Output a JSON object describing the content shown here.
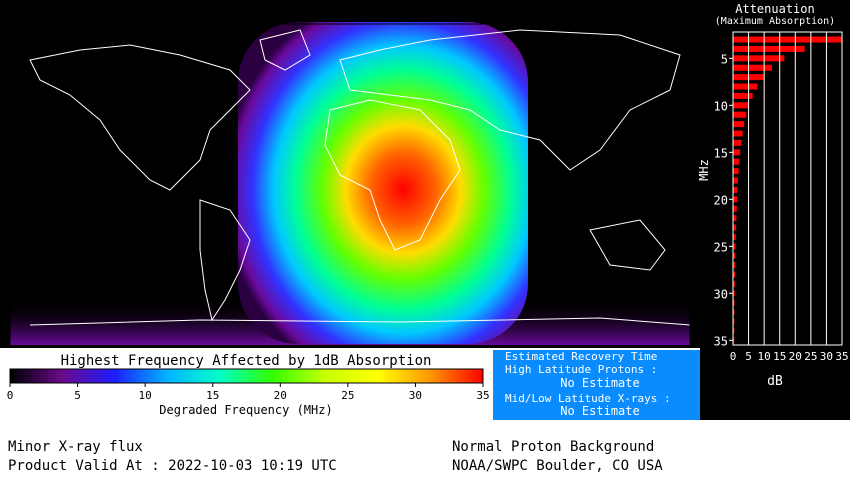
{
  "colorbar": {
    "title": "Highest Frequency Affected by 1dB Absorption",
    "xlabel": "Degraded Frequency (MHz)",
    "xlim": [
      0,
      35
    ],
    "xticks": [
      0,
      5,
      10,
      15,
      20,
      25,
      30,
      35
    ],
    "colors": [
      "#000000",
      "#6a0a8c",
      "#1e1eff",
      "#00b4ff",
      "#00ffc8",
      "#32ff00",
      "#c8ff00",
      "#ffff00",
      "#ff9600",
      "#ff0000"
    ]
  },
  "attenuation": {
    "type": "bar",
    "title": "Attenuation",
    "subtitle": "(Maximum Absorption)",
    "ylabel": "MHz",
    "xlabel": "dB",
    "categories": [
      3,
      4,
      5,
      6,
      7,
      8,
      9,
      10,
      11,
      12,
      13,
      14,
      15,
      16,
      17,
      18,
      19,
      20,
      21,
      22,
      23,
      24,
      25,
      26,
      27,
      28,
      29,
      30,
      31,
      32,
      33,
      34,
      35
    ],
    "values": [
      35,
      23,
      16.5,
      12.5,
      9.8,
      7.8,
      6.3,
      5.2,
      4.3,
      3.6,
      3.1,
      2.7,
      2.3,
      2.0,
      1.8,
      1.6,
      1.4,
      1.3,
      1.2,
      1.1,
      1.0,
      0.9,
      0.8,
      0.75,
      0.7,
      0.65,
      0.6,
      0.55,
      0.5,
      0.48,
      0.45,
      0.42,
      0.4
    ],
    "color": "#ff0000",
    "xlim": [
      0,
      35
    ],
    "xticks": [
      0,
      5,
      10,
      15,
      20,
      25,
      30,
      35
    ],
    "ylim": [
      2.2,
      35.5
    ],
    "yticks": [
      5,
      10,
      15,
      20,
      25,
      30,
      35
    ],
    "grid": true
  },
  "recovery": {
    "title": "Estimated Recovery Time",
    "items": [
      {
        "label": "High Latitude Protons :",
        "value": "No Estimate"
      },
      {
        "label": "Mid/Low Latitude X-rays :",
        "value": "No Estimate"
      }
    ]
  },
  "footer": {
    "xray": "Minor X-ray flux",
    "valid": "Product Valid At : 2022-10-03 10:19 UTC",
    "proton": "Normal Proton Background",
    "source": "NOAA/SWPC Boulder, CO USA"
  }
}
